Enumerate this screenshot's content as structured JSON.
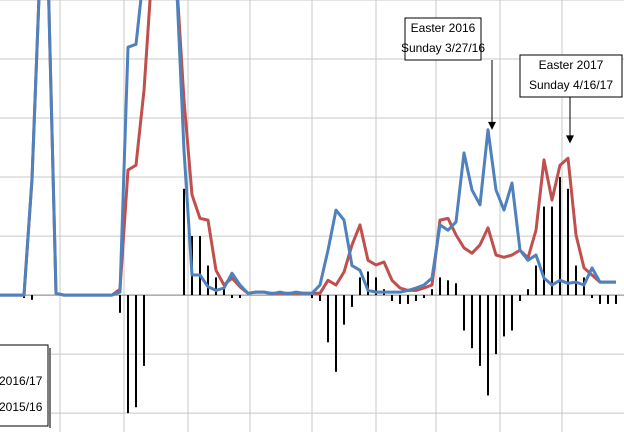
{
  "chart_data": {
    "type": "line",
    "x": [
      0,
      1,
      2,
      3,
      4,
      5,
      6,
      7,
      8,
      9,
      10,
      11,
      12,
      13,
      14,
      15,
      16,
      17,
      18,
      19,
      20,
      21,
      22,
      23,
      24,
      25,
      26,
      27,
      28,
      29,
      30,
      31,
      32,
      33,
      34,
      35,
      36,
      37,
      38,
      39,
      40,
      41,
      42,
      43,
      44,
      45,
      46,
      47,
      48,
      49,
      50,
      51,
      52,
      53,
      54,
      55,
      56,
      57,
      58,
      59,
      60,
      61,
      62,
      63,
      64,
      65,
      66,
      67,
      68,
      69,
      70,
      71,
      72,
      73,
      74,
      75,
      76,
      77
    ],
    "xlim": [
      0,
      78
    ],
    "xticks": [
      7.5,
      15.5,
      23.5,
      31.25,
      39,
      47,
      54.5,
      62.5,
      70.25
    ],
    "ylim": [
      -2.32,
      5.0
    ],
    "yticks": [
      -2,
      -1,
      0,
      1,
      2,
      3,
      4,
      5
    ],
    "grid": true,
    "series": [
      {
        "name": "2016/17",
        "color": "#4f81bd",
        "values": [
          0,
          0,
          0,
          0,
          1.98,
          5.5,
          5.5,
          0.03,
          0,
          0,
          0,
          0,
          0,
          0,
          0,
          0.05,
          4.2,
          4.25,
          5.5,
          5.5,
          5.5,
          5.5,
          5.5,
          2.45,
          0.34,
          0.34,
          0.14,
          0.08,
          0.12,
          0.37,
          0.17,
          0.03,
          0.05,
          0.05,
          0.02,
          0.05,
          0.02,
          0.05,
          0.03,
          0.03,
          0.17,
          0.76,
          1.44,
          1.27,
          0.5,
          0.42,
          0.08,
          0.05,
          0.05,
          0.05,
          0.05,
          0.08,
          0.12,
          0.17,
          0.29,
          1.19,
          1.1,
          1.24,
          2.41,
          1.78,
          1.53,
          2.8,
          1.78,
          1.44,
          1.9,
          0.76,
          0.59,
          0.68,
          0.29,
          0.17,
          0.25,
          0.2,
          0.22,
          0.17,
          0.46,
          0.22,
          0.22,
          0.22
        ]
      },
      {
        "name": "2015/16",
        "color": "#c0504d",
        "values": [
          0,
          0,
          0,
          0,
          1.95,
          5.5,
          5.5,
          0.03,
          0,
          0,
          0,
          0,
          0,
          0,
          0,
          0.1,
          2.12,
          2.2,
          3.47,
          5.5,
          5.5,
          5.5,
          5.5,
          3.3,
          1.7,
          1.3,
          1.27,
          0.42,
          0.17,
          0.29,
          0.14,
          0.03,
          0.05,
          0.05,
          0.03,
          0.03,
          0.03,
          0.03,
          0.03,
          0.03,
          0.03,
          0.25,
          0.17,
          0.39,
          0.85,
          1.19,
          0.59,
          0.51,
          0.56,
          0.25,
          0.12,
          0.08,
          0.08,
          0.12,
          0.17,
          1.27,
          1.3,
          1.02,
          0.8,
          0.71,
          0.85,
          1.14,
          0.68,
          0.64,
          0.68,
          0.76,
          0.63,
          1.1,
          2.29,
          1.61,
          2.2,
          2.32,
          1.02,
          0.46,
          0.34,
          0.22,
          0.22,
          0.22
        ]
      }
    ],
    "bar_color": "#000000",
    "bar_values": [
      0,
      0,
      0,
      -0.05,
      -0.08,
      0,
      0,
      0,
      0,
      0,
      0,
      0,
      0,
      0,
      0,
      -0.3,
      -2.0,
      -1.9,
      -1.2,
      0,
      0,
      0,
      0,
      1.8,
      1.0,
      1.0,
      0.5,
      0.3,
      0.1,
      -0.05,
      -0.05,
      0,
      0,
      0,
      0,
      0,
      0,
      0,
      0,
      -0.05,
      -0.1,
      -0.8,
      -1.3,
      -0.5,
      -0.2,
      0.3,
      0.4,
      0.3,
      0.1,
      -0.1,
      -0.15,
      -0.15,
      -0.1,
      -0.05,
      0.1,
      0.3,
      0.25,
      0.2,
      -0.6,
      -0.9,
      -1.2,
      -1.7,
      -1.0,
      -0.7,
      -0.6,
      -0.1,
      0.1,
      0.5,
      1.5,
      1.5,
      2.0,
      1.8,
      0.5,
      0.3,
      -0.05,
      -0.15,
      -0.15,
      -0.15
    ],
    "annotations": [
      {
        "lines": [
          "Easter 2016",
          "Sunday 3/27/16"
        ],
        "x": 61.5,
        "y": 2.8
      },
      {
        "lines": [
          "Easter 2017",
          "Sunday 4/16/17"
        ],
        "x": 71.25,
        "y": 2.57
      }
    ]
  }
}
